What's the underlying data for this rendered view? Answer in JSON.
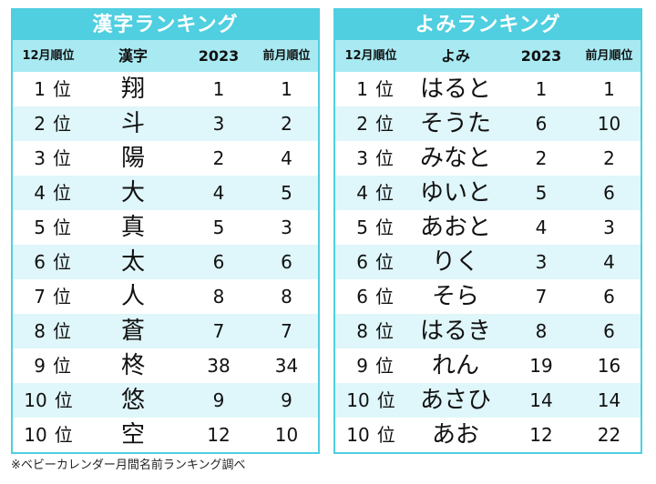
{
  "kanji_ranking": {
    "title": "漢字ランキング",
    "headers": {
      "rank": "12月順位",
      "name": "漢字",
      "y2023": "2023",
      "prev": "前月順位"
    },
    "rank_suffix": "位",
    "rows": [
      {
        "rank": "1",
        "name": "翔",
        "y2023": "1",
        "prev": "1"
      },
      {
        "rank": "2",
        "name": "斗",
        "y2023": "3",
        "prev": "2"
      },
      {
        "rank": "3",
        "name": "陽",
        "y2023": "2",
        "prev": "4"
      },
      {
        "rank": "4",
        "name": "大",
        "y2023": "4",
        "prev": "5"
      },
      {
        "rank": "5",
        "name": "真",
        "y2023": "5",
        "prev": "3"
      },
      {
        "rank": "6",
        "name": "太",
        "y2023": "6",
        "prev": "6"
      },
      {
        "rank": "7",
        "name": "人",
        "y2023": "8",
        "prev": "8"
      },
      {
        "rank": "8",
        "name": "蒼",
        "y2023": "7",
        "prev": "7"
      },
      {
        "rank": "9",
        "name": "柊",
        "y2023": "38",
        "prev": "34"
      },
      {
        "rank": "10",
        "name": "悠",
        "y2023": "9",
        "prev": "9"
      },
      {
        "rank": "10",
        "name": "空",
        "y2023": "12",
        "prev": "10"
      }
    ]
  },
  "yomi_ranking": {
    "title": "よみランキング",
    "headers": {
      "rank": "12月順位",
      "name": "よみ",
      "y2023": "2023",
      "prev": "前月順位"
    },
    "rank_suffix": "位",
    "rows": [
      {
        "rank": "1",
        "name": "はると",
        "y2023": "1",
        "prev": "1"
      },
      {
        "rank": "2",
        "name": "そうた",
        "y2023": "6",
        "prev": "10"
      },
      {
        "rank": "3",
        "name": "みなと",
        "y2023": "2",
        "prev": "2"
      },
      {
        "rank": "4",
        "name": "ゆいと",
        "y2023": "5",
        "prev": "6"
      },
      {
        "rank": "5",
        "name": "あおと",
        "y2023": "4",
        "prev": "3"
      },
      {
        "rank": "6",
        "name": "りく",
        "y2023": "3",
        "prev": "4"
      },
      {
        "rank": "6",
        "name": "そら",
        "y2023": "7",
        "prev": "6"
      },
      {
        "rank": "8",
        "name": "はるき",
        "y2023": "8",
        "prev": "6"
      },
      {
        "rank": "9",
        "name": "れん",
        "y2023": "19",
        "prev": "16"
      },
      {
        "rank": "10",
        "name": "あさひ",
        "y2023": "14",
        "prev": "14"
      },
      {
        "rank": "10",
        "name": "あお",
        "y2023": "12",
        "prev": "22"
      }
    ]
  },
  "footnote": "※ベビーカレンダー月間名前ランキング調べ",
  "colors": {
    "title_bg": "#4fcfe0",
    "header_bg": "#a8e9f2",
    "alt_row_bg": "#dff6fa",
    "border": "#4fcfe0"
  }
}
